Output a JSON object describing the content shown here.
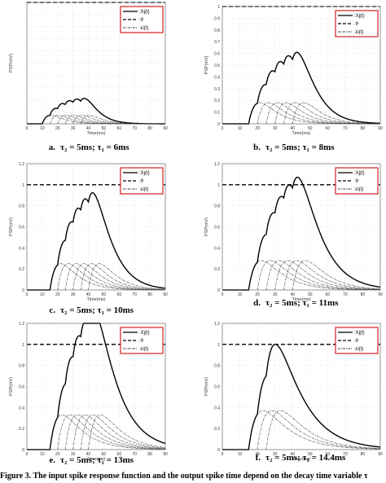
{
  "caption": "Figure 3. The input spike response function and the output spike time depend on the decay time variable τ",
  "chart_data": [
    {
      "type": "line",
      "panel_label": "a.",
      "sublabel": "τ₂ = 5ms; τ₁ = 6ms",
      "xlabel": "Time(ms)",
      "ylabel": "PSP(mV)",
      "xlim": [
        0,
        90
      ],
      "ylim": [
        0,
        1
      ],
      "xticks": [
        "0",
        "10",
        "20",
        "30",
        "40",
        "50",
        "60",
        "70",
        "80",
        "90"
      ],
      "yticks": [],
      "grid": true,
      "legend_position": "top-right",
      "legend": [
        ":Xj(t)",
        ":ϑ",
        ":εi(t)"
      ],
      "threshold": 1,
      "spikes": [
        10,
        15,
        20,
        25,
        30,
        35
      ],
      "tau1": 6,
      "tau2": 5,
      "scale": 0.44,
      "peak_gain": 0.07
    },
    {
      "type": "line",
      "panel_label": "b.",
      "sublabel": "τ₂ = 5ms; τ₁ = 8ms",
      "xlabel": "Time(ms)",
      "ylabel": "PSP(mV)",
      "xlim": [
        0,
        90
      ],
      "ylim": [
        0,
        1
      ],
      "xticks": [
        "0",
        "10",
        "20",
        "30",
        "40",
        "50",
        "60",
        "70",
        "80",
        "90"
      ],
      "yticks": [
        "0",
        "0.1",
        "0.2",
        "0.3",
        "0.4",
        "0.5",
        "0.6",
        "0.7",
        "0.8",
        "0.9",
        "1"
      ],
      "grid": true,
      "legend_position": "top-right",
      "legend": [
        ":Xj(t)",
        ":ϑ",
        ":εi(t)"
      ],
      "threshold": 1,
      "spikes": [
        15,
        20,
        25,
        30,
        35,
        40
      ],
      "tau1": 8,
      "tau2": 5,
      "scale": 0.44,
      "peak_gain": 0.18
    },
    {
      "type": "line",
      "panel_label": "c.",
      "sublabel": "τ₂ = 5ms; τ₁ = 10ms",
      "xlabel": "Time(ms)",
      "ylabel": "PSP(mV)",
      "xlim": [
        0,
        90
      ],
      "ylim": [
        0,
        1.2
      ],
      "xticks": [
        "0",
        "10",
        "20",
        "30",
        "40",
        "50",
        "60",
        "70",
        "80",
        "90"
      ],
      "yticks": [
        "0",
        "0.2",
        "0.4",
        "0.6",
        "0.8",
        "1",
        "1.2"
      ],
      "grid": true,
      "legend_position": "top-right",
      "legend": [
        ":Xj(t)",
        ":ϑ",
        ":εi(t)"
      ],
      "threshold": 1,
      "spikes": [
        15,
        20,
        25,
        30,
        35,
        40
      ],
      "tau1": 10,
      "tau2": 5,
      "scale": 0.44,
      "peak_gain": 0.25
    },
    {
      "type": "line",
      "panel_label": "d.",
      "sublabel": "τ₂ = 5ms; τ₁ = 11ms",
      "xlabel": "Time(ms)",
      "ylabel": "PSP(mV)",
      "xlim": [
        0,
        90
      ],
      "ylim": [
        0,
        1.2
      ],
      "xticks": [
        "0",
        "10",
        "20",
        "30",
        "40",
        "50",
        "60",
        "70",
        "80",
        "90"
      ],
      "yticks": [
        "0",
        "0.2",
        "0.4",
        "0.6",
        "0.8",
        "1",
        "1.2"
      ],
      "grid": true,
      "legend_position": "top-right",
      "legend": [
        ":Xj(t)",
        ":ϑ",
        ":εi(t)"
      ],
      "threshold": 1,
      "spikes": [
        15,
        20,
        25,
        30,
        35,
        40
      ],
      "tau1": 11,
      "tau2": 5,
      "scale": 0.44,
      "peak_gain": 0.28
    },
    {
      "type": "line",
      "panel_label": "e.",
      "sublabel": "τ₂ = 5ms; τ₁ = 13ms",
      "xlabel": "Time(ms)",
      "ylabel": "PSP(mV)",
      "xlim": [
        0,
        90
      ],
      "ylim": [
        0,
        1.2
      ],
      "xticks": [
        "0",
        "10",
        "20",
        "30",
        "40",
        "50",
        "60",
        "70",
        "80",
        "90"
      ],
      "yticks": [
        "0",
        "0.2",
        "0.4",
        "0.6",
        "0.8",
        "1",
        "1.2"
      ],
      "grid": true,
      "legend_position": "top-right",
      "legend": [
        ":Xj(t)",
        ":ϑ",
        ":εi(t)"
      ],
      "threshold": 1,
      "spikes": [
        15,
        20,
        25,
        30,
        35,
        40
      ],
      "tau1": 13,
      "tau2": 5,
      "scale": 0.44,
      "peak_gain": 0.33
    },
    {
      "type": "line",
      "panel_label": "f.",
      "sublabel": "τ₂ = 5ms; τ₁ = 14.4ms",
      "xlabel": "Time(ms)",
      "ylabel": "PSP(mV)",
      "xlim": [
        0,
        90
      ],
      "ylim": [
        0,
        1.2
      ],
      "xticks": [
        "0",
        "10",
        "20",
        "30",
        "40",
        "50",
        "60",
        "70",
        "80",
        "90"
      ],
      "yticks": [
        "0",
        "0.2",
        "0.4",
        "0.6",
        "0.8",
        "1",
        "1.2"
      ],
      "grid": true,
      "legend_position": "top-right",
      "legend": [
        ":Xj(t)",
        ":ϑ",
        ":εi(t)"
      ],
      "threshold": 1,
      "spikes": [
        15,
        20,
        25
      ],
      "tau1": 14.4,
      "tau2": 5,
      "scale": 0.44,
      "peak_gain": 0.37
    }
  ]
}
